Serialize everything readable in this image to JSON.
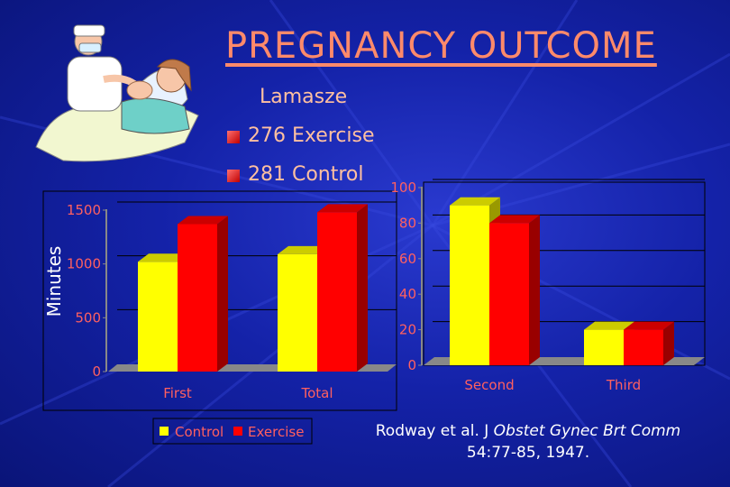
{
  "slide": {
    "title": "PREGNANCY OUTCOME",
    "legend_heading": "Lamasze",
    "group1": "276 Exercise",
    "group2": "281 Control",
    "citation_line1_a": "Rodway et al. J ",
    "citation_line1_b": "Obstet Gynec Brt Comm",
    "citation_line2": "54:77-85, 1947.",
    "clipart": "nurse-and-patient-illustration"
  },
  "colors": {
    "control": "#ffff00",
    "exercise": "#ff0000",
    "title": "#ff8a6a"
  },
  "chart_data": [
    {
      "type": "bar",
      "ylabel": "Minutes",
      "ylim": [
        0,
        1500
      ],
      "yticks": [
        "0",
        "500",
        "1000",
        "1500"
      ],
      "categories": [
        "First",
        "Total"
      ],
      "series": [
        {
          "name": "Control",
          "values": [
            1020,
            1090
          ]
        },
        {
          "name": "Exercise",
          "values": [
            1370,
            1480
          ]
        }
      ],
      "legend": [
        "Control",
        "Exercise"
      ]
    },
    {
      "type": "bar",
      "ylabel": "",
      "ylim": [
        0,
        100
      ],
      "yticks": [
        "0",
        "20",
        "40",
        "60",
        "80",
        "100"
      ],
      "categories": [
        "Second",
        "Third"
      ],
      "series": [
        {
          "name": "Control",
          "values": [
            90,
            20
          ]
        },
        {
          "name": "Exercise",
          "values": [
            80,
            20
          ]
        }
      ]
    }
  ]
}
